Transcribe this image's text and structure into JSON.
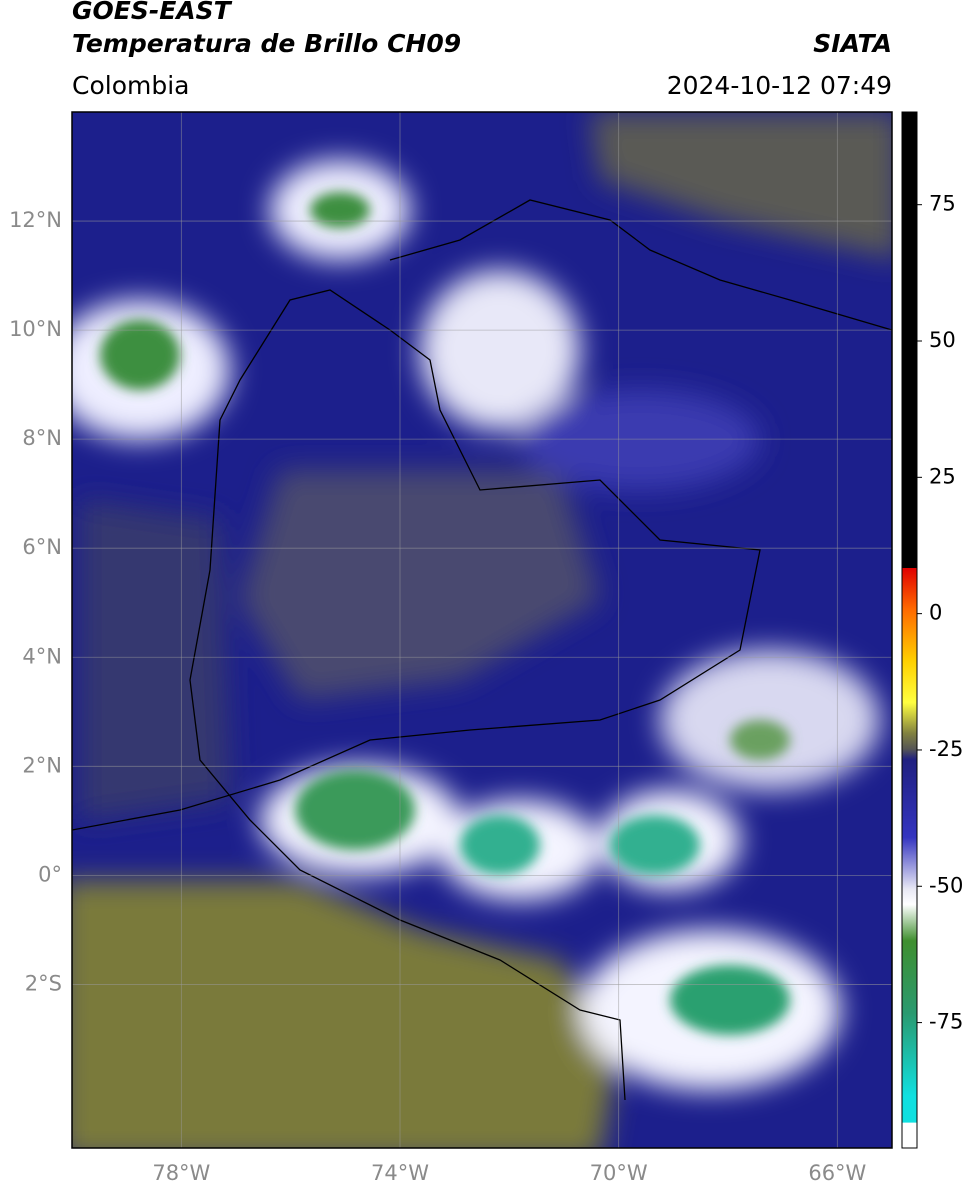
{
  "header": {
    "title": "GOES-EAST",
    "subtitle": "Temperatura de Brillo CH09",
    "brand": "SIATA",
    "region": "Colombia",
    "timestamp": "2024-10-12 07:49"
  },
  "map": {
    "xlim": [
      -80,
      -65
    ],
    "ylim": [
      -5,
      14
    ],
    "xticks": [
      {
        "value": -78,
        "label": "78°W"
      },
      {
        "value": -74,
        "label": "74°W"
      },
      {
        "value": -70,
        "label": "70°W"
      },
      {
        "value": -66,
        "label": "66°W"
      }
    ],
    "yticks": [
      {
        "value": 12,
        "label": "12°N"
      },
      {
        "value": 10,
        "label": "10°N"
      },
      {
        "value": 8,
        "label": "8°N"
      },
      {
        "value": 6,
        "label": "6°N"
      },
      {
        "value": 4,
        "label": "4°N"
      },
      {
        "value": 2,
        "label": "2°N"
      },
      {
        "value": 0,
        "label": "0°"
      },
      {
        "value": -2,
        "label": "2°S"
      }
    ],
    "grid": true
  },
  "colorbar": {
    "lim": [
      -98,
      92
    ],
    "ticks": [
      75,
      50,
      25,
      0,
      -25,
      -50,
      -75
    ]
  }
}
